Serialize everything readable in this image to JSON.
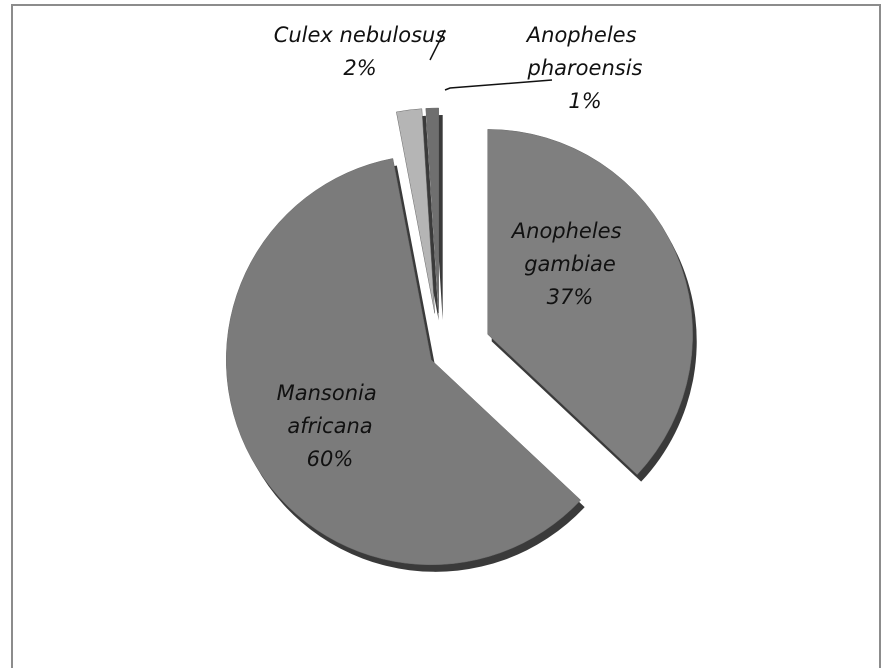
{
  "chart_data": {
    "type": "pie",
    "categories": [
      "Anopheles gambiae",
      "Mansonia africana",
      "Culex nebulosus",
      "Anopheles pharoensis"
    ],
    "values": [
      37,
      60,
      2,
      1
    ],
    "value_labels": [
      "37%",
      "60%",
      "2%",
      "1%"
    ],
    "colors": [
      "#7f7f7f",
      "#7b7b7b",
      "#b5b5b5",
      "#6f6f6f"
    ]
  }
}
